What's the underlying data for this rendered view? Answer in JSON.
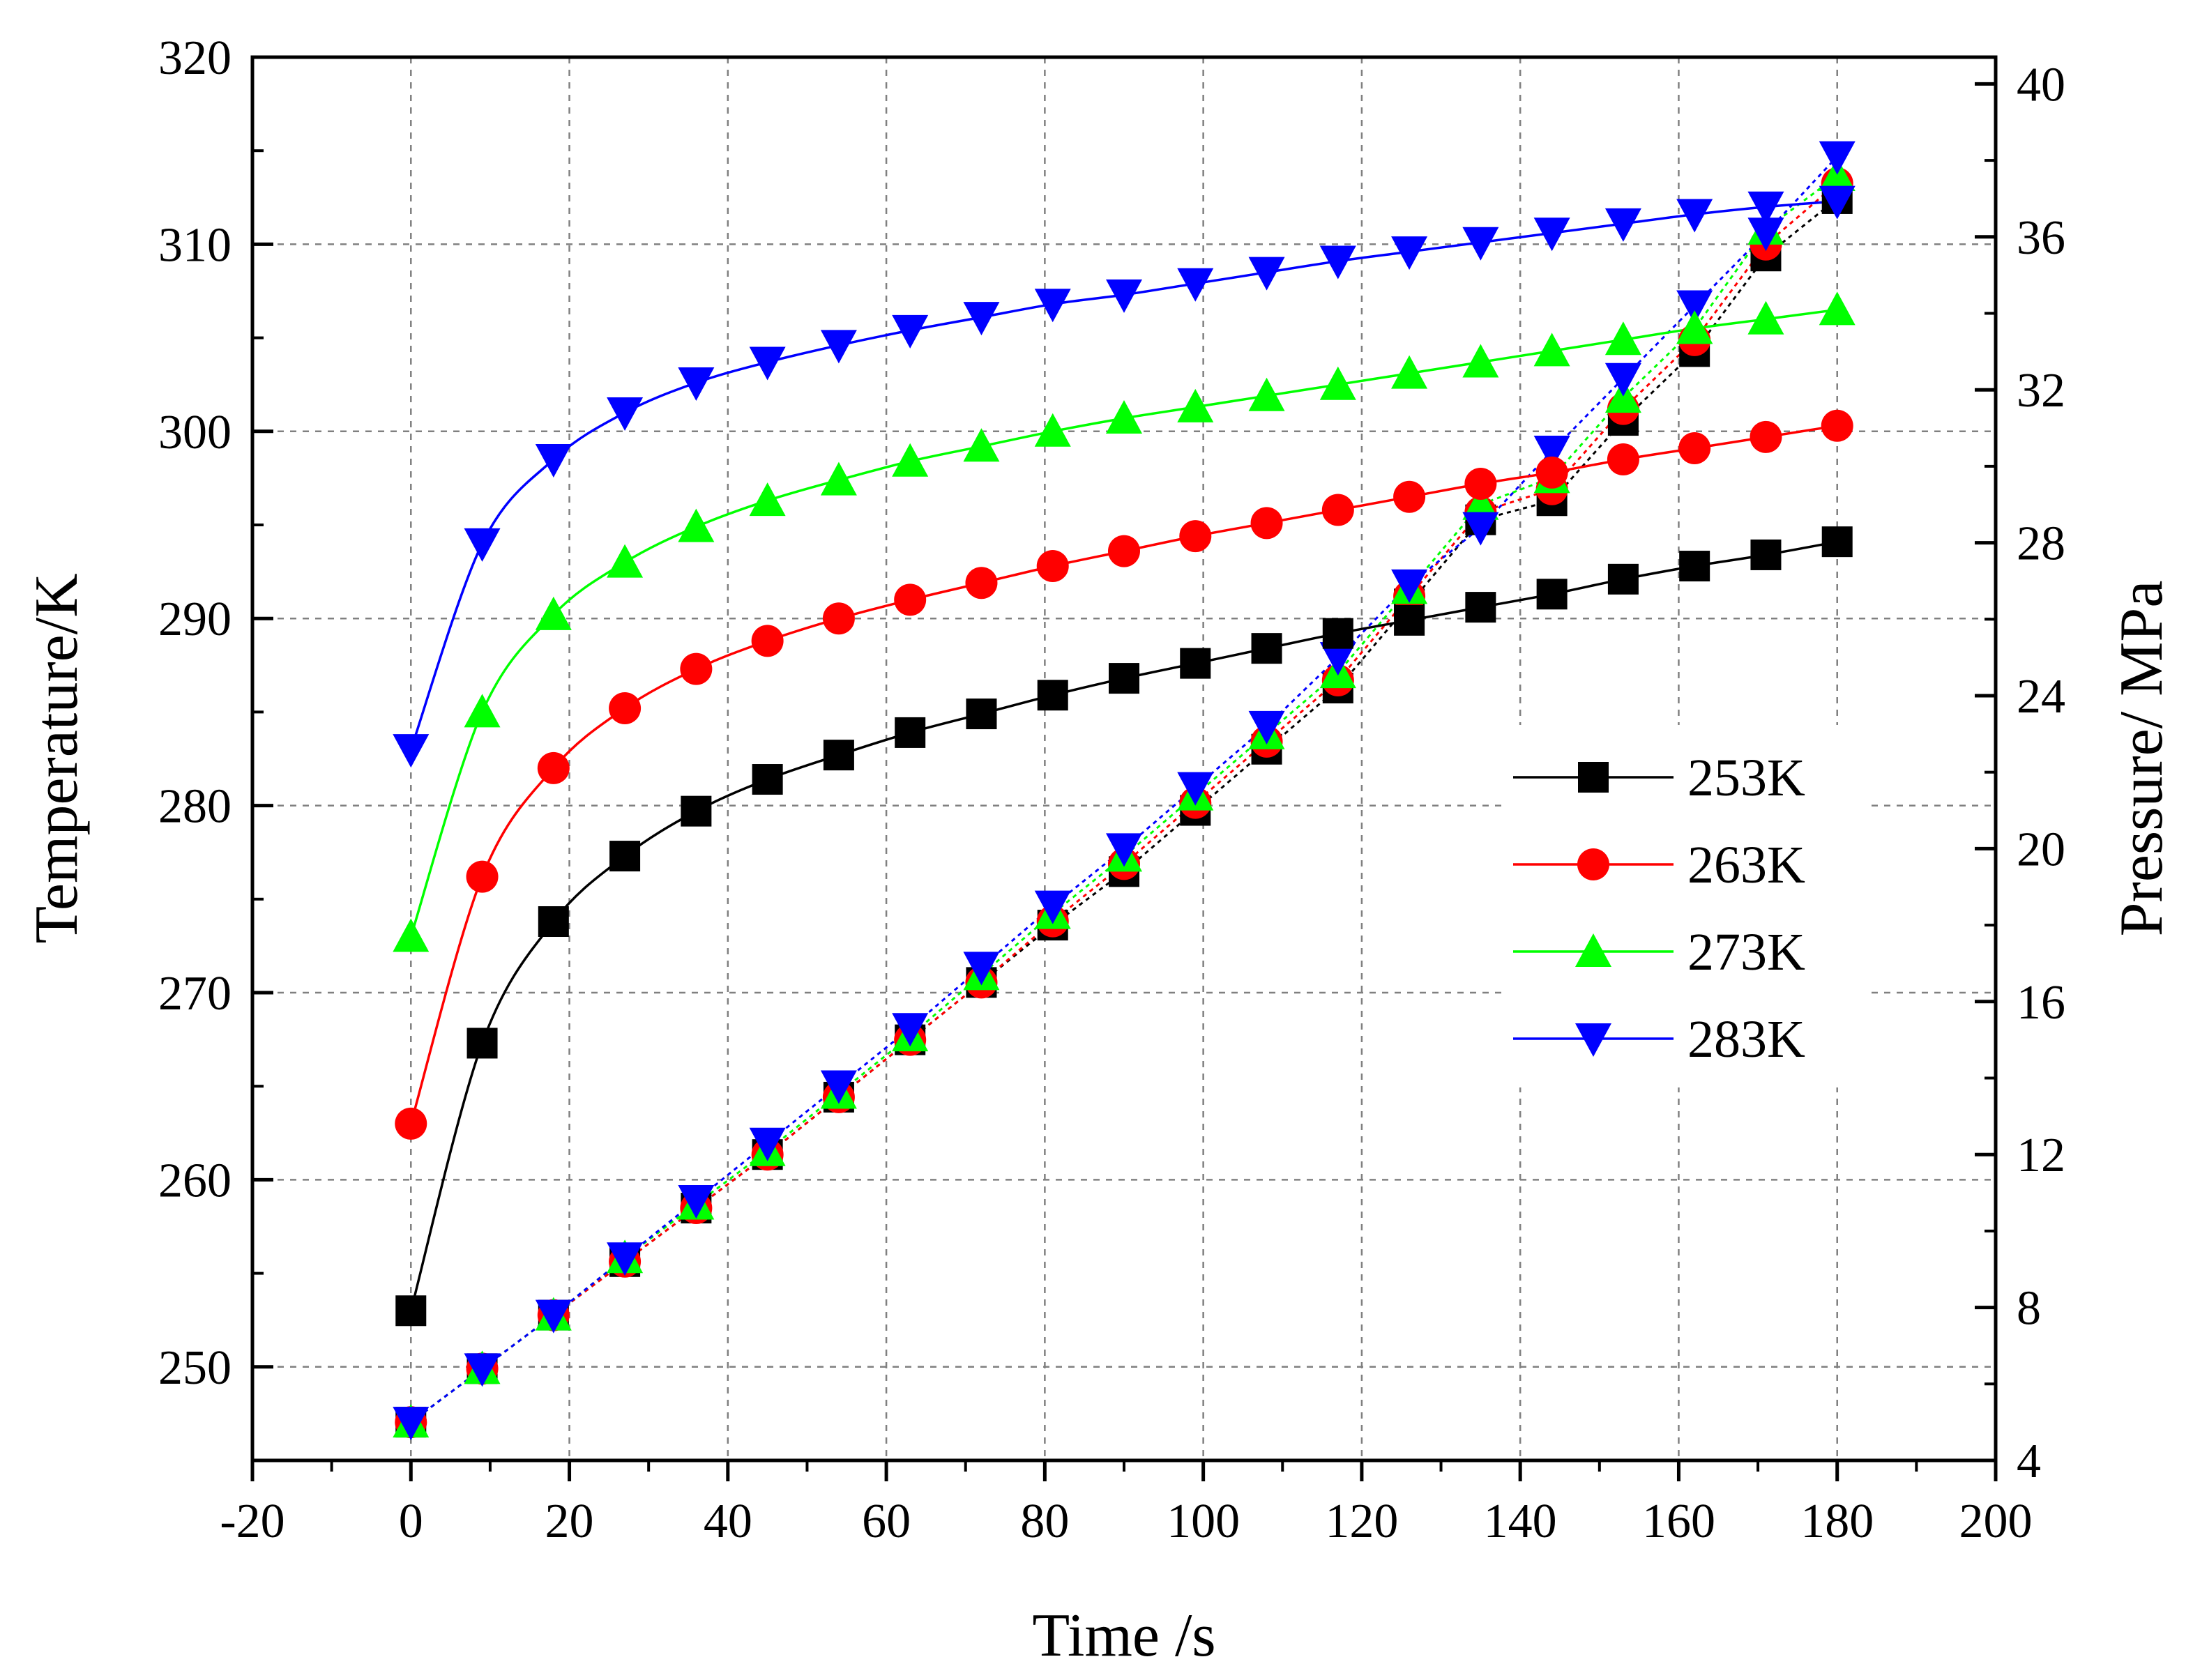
{
  "chart_data": {
    "type": "line",
    "xlabel": "Time /s",
    "ylabel_left": "Temperature/K",
    "ylabel_right": "Pressure/ MPa",
    "xlim": [
      -20,
      200
    ],
    "ylim_left": [
      245,
      320
    ],
    "ylim_right": [
      4,
      40.7
    ],
    "x_ticks": [
      -20,
      0,
      20,
      40,
      60,
      80,
      100,
      120,
      140,
      160,
      180,
      200
    ],
    "y_left_ticks": [
      250,
      260,
      270,
      280,
      290,
      300,
      310,
      320
    ],
    "y_right_ticks": [
      4,
      8,
      12,
      16,
      20,
      24,
      28,
      32,
      36,
      40
    ],
    "grid": true,
    "legend_position": "right-middle",
    "x": [
      0,
      9,
      18,
      27,
      36,
      45,
      54,
      63,
      72,
      81,
      90,
      99,
      108,
      117,
      126,
      135,
      144,
      153,
      162,
      171,
      180
    ],
    "temperature_series": [
      {
        "name": "253K",
        "color": "#000000",
        "marker": "square",
        "values": [
          253.0,
          267.3,
          273.8,
          277.3,
          279.7,
          281.4,
          282.7,
          283.9,
          284.9,
          285.9,
          286.8,
          287.6,
          288.4,
          289.2,
          289.9,
          290.6,
          291.3,
          292.1,
          292.8,
          293.4,
          294.1
        ]
      },
      {
        "name": "263K",
        "color": "#ff0000",
        "marker": "circle",
        "values": [
          263.0,
          276.2,
          282.0,
          285.2,
          287.3,
          288.8,
          290.0,
          291.0,
          291.9,
          292.8,
          293.6,
          294.4,
          295.1,
          295.8,
          296.5,
          297.2,
          297.8,
          298.5,
          299.1,
          299.7,
          300.3
        ]
      },
      {
        "name": "273K",
        "color": "#00ff00",
        "marker": "triangle-up",
        "values": [
          273.0,
          285.0,
          290.2,
          293.0,
          294.9,
          296.3,
          297.4,
          298.4,
          299.2,
          300.0,
          300.7,
          301.3,
          301.9,
          302.5,
          303.1,
          303.7,
          304.3,
          304.9,
          305.5,
          306.0,
          306.5
        ]
      },
      {
        "name": "283K",
        "color": "#0000ff",
        "marker": "triangle-down",
        "values": [
          283.0,
          294.0,
          298.5,
          301.0,
          302.6,
          303.7,
          304.6,
          305.4,
          306.1,
          306.8,
          307.3,
          307.9,
          308.5,
          309.1,
          309.6,
          310.1,
          310.6,
          311.1,
          311.6,
          312.0,
          312.3
        ]
      }
    ],
    "pressure_series": [
      {
        "name": "253K",
        "color": "#000000",
        "marker": "square",
        "values": [
          5.0,
          6.4,
          7.8,
          9.2,
          10.6,
          12.0,
          13.5,
          15.0,
          16.5,
          18.0,
          19.4,
          21.0,
          22.6,
          24.2,
          26.4,
          28.6,
          29.1,
          31.2,
          33.0,
          35.5,
          37.0
        ]
      },
      {
        "name": "263K",
        "color": "#ff0000",
        "marker": "circle",
        "values": [
          5.0,
          6.4,
          7.8,
          9.2,
          10.6,
          12.0,
          13.5,
          15.0,
          16.5,
          18.1,
          19.6,
          21.2,
          22.8,
          24.4,
          26.6,
          28.8,
          29.4,
          31.5,
          33.3,
          35.8,
          37.4
        ]
      },
      {
        "name": "273K",
        "color": "#00ff00",
        "marker": "triangle-up",
        "values": [
          5.0,
          6.4,
          7.8,
          9.3,
          10.7,
          12.1,
          13.6,
          15.1,
          16.7,
          18.3,
          19.8,
          21.4,
          23.0,
          24.6,
          26.8,
          29.0,
          29.7,
          31.8,
          33.6,
          36.2,
          37.6
        ]
      },
      {
        "name": "283K",
        "color": "#0000ff",
        "marker": "triangle-down",
        "values": [
          5.0,
          6.4,
          7.8,
          9.3,
          10.8,
          12.3,
          13.8,
          15.3,
          16.9,
          18.5,
          20.0,
          21.6,
          23.2,
          25.0,
          26.9,
          28.4,
          30.4,
          32.3,
          34.2,
          36.1,
          38.1
        ]
      }
    ]
  }
}
